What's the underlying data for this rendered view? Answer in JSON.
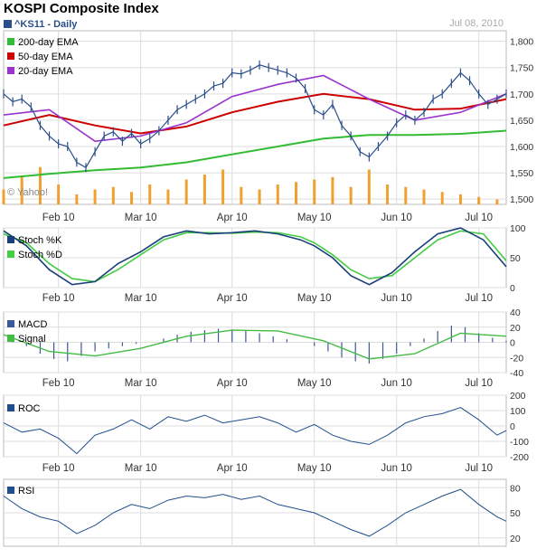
{
  "title": "KOSPI Composite Index",
  "ticker": "^KS11 - Daily",
  "date": "Jul 08, 2010",
  "watermark": "© Yahoo!",
  "colors": {
    "price": "#2b4f8a",
    "ema200": "#33bb33",
    "ema50": "#cc0000",
    "ema20": "#9933cc",
    "volume": "#f0a030",
    "stochK": "#1a3f7a",
    "stochD": "#44cc44",
    "macd": "#3b5998",
    "signal": "#44bb44",
    "line": "#1f4e8c",
    "grid": "#dddddd"
  },
  "month_labels": [
    "Feb 10",
    "Mar 10",
    "Apr 10",
    "May 10",
    "Jun 10",
    "Jul 10"
  ],
  "chart_data": [
    {
      "panel": "price",
      "type": "line",
      "title": "KOSPI Composite Index",
      "ylim": [
        1490,
        1820
      ],
      "yticks": [
        "1,800",
        "1,750",
        "1,700",
        "1,650",
        "1,600",
        "1,550",
        "1,500"
      ],
      "ytick_values": [
        1800,
        1750,
        1700,
        1650,
        1600,
        1550,
        1500
      ],
      "x_range": [
        0,
        110
      ],
      "month_positions": [
        12,
        30,
        50,
        68,
        86,
        104
      ],
      "series": [
        {
          "name": "200-day EMA",
          "x": [
            0,
            10,
            20,
            30,
            40,
            50,
            60,
            70,
            80,
            90,
            100,
            110
          ],
          "values": [
            1540,
            1548,
            1555,
            1560,
            1570,
            1585,
            1600,
            1615,
            1622,
            1622,
            1624,
            1630
          ]
        },
        {
          "name": "50-day EMA",
          "x": [
            0,
            10,
            20,
            30,
            40,
            50,
            60,
            70,
            80,
            90,
            100,
            110
          ],
          "values": [
            1640,
            1660,
            1640,
            1625,
            1638,
            1665,
            1685,
            1700,
            1690,
            1670,
            1672,
            1690
          ]
        },
        {
          "name": "20-day EMA",
          "x": [
            0,
            10,
            20,
            30,
            40,
            50,
            60,
            70,
            80,
            90,
            100,
            110
          ],
          "values": [
            1660,
            1670,
            1610,
            1620,
            1645,
            1695,
            1718,
            1735,
            1690,
            1650,
            1665,
            1700
          ]
        },
        {
          "name": "^KS11",
          "x": [
            0,
            2,
            4,
            6,
            8,
            10,
            12,
            14,
            16,
            18,
            20,
            22,
            24,
            26,
            28,
            30,
            32,
            34,
            36,
            38,
            40,
            42,
            44,
            46,
            48,
            50,
            52,
            54,
            56,
            58,
            60,
            62,
            64,
            66,
            68,
            70,
            72,
            74,
            76,
            78,
            80,
            82,
            84,
            86,
            88,
            90,
            92,
            94,
            96,
            98,
            100,
            102,
            104,
            106,
            108,
            110
          ],
          "values": [
            1700,
            1685,
            1690,
            1675,
            1640,
            1620,
            1605,
            1600,
            1570,
            1560,
            1590,
            1620,
            1628,
            1610,
            1625,
            1605,
            1615,
            1630,
            1650,
            1670,
            1680,
            1690,
            1700,
            1715,
            1720,
            1740,
            1738,
            1745,
            1755,
            1750,
            1745,
            1740,
            1730,
            1710,
            1670,
            1660,
            1680,
            1640,
            1620,
            1590,
            1580,
            1600,
            1620,
            1645,
            1660,
            1650,
            1665,
            1690,
            1700,
            1720,
            1740,
            1725,
            1700,
            1680,
            1690,
            1700
          ]
        }
      ],
      "volume": {
        "name": "Volume",
        "x": [
          0,
          4,
          8,
          12,
          16,
          20,
          24,
          28,
          32,
          36,
          40,
          44,
          48,
          52,
          56,
          60,
          64,
          68,
          72,
          76,
          80,
          84,
          88,
          92,
          96,
          100,
          104,
          108
        ],
        "values": [
          30,
          55,
          75,
          40,
          20,
          30,
          35,
          25,
          40,
          30,
          50,
          60,
          70,
          35,
          30,
          40,
          45,
          50,
          55,
          35,
          70,
          40,
          35,
          30,
          25,
          20,
          15,
          10
        ]
      }
    },
    {
      "panel": "stochastic",
      "type": "line",
      "ylim": [
        0,
        100
      ],
      "yticks": [
        "100",
        "50",
        "0"
      ],
      "ytick_values": [
        100,
        50,
        0
      ],
      "series": [
        {
          "name": "Stoch %K",
          "x": [
            0,
            5,
            10,
            15,
            20,
            25,
            30,
            35,
            40,
            45,
            50,
            55,
            60,
            65,
            68,
            72,
            76,
            80,
            85,
            90,
            95,
            100,
            105,
            110
          ],
          "values": [
            95,
            70,
            30,
            5,
            10,
            40,
            60,
            85,
            95,
            90,
            92,
            95,
            90,
            80,
            70,
            50,
            20,
            5,
            25,
            60,
            90,
            100,
            80,
            35
          ]
        },
        {
          "name": "Stoch %D",
          "x": [
            0,
            5,
            10,
            15,
            20,
            25,
            30,
            35,
            40,
            45,
            50,
            55,
            60,
            65,
            68,
            72,
            76,
            80,
            85,
            90,
            95,
            100,
            105,
            110
          ],
          "values": [
            90,
            75,
            40,
            15,
            10,
            30,
            55,
            80,
            92,
            92,
            91,
            93,
            92,
            85,
            75,
            55,
            30,
            15,
            20,
            50,
            80,
            95,
            90,
            45
          ]
        }
      ]
    },
    {
      "panel": "macd",
      "type": "bar",
      "ylim": [
        -40,
        40
      ],
      "yticks": [
        "40",
        "20",
        "0",
        "-20",
        "-40"
      ],
      "ytick_values": [
        40,
        20,
        0,
        -20,
        -40
      ],
      "series": [
        {
          "name": "MACD",
          "x": [
            2,
            5,
            8,
            11,
            14,
            17,
            20,
            23,
            26,
            29,
            32,
            35,
            38,
            41,
            44,
            47,
            50,
            53,
            56,
            59,
            62,
            65,
            68,
            71,
            74,
            77,
            80,
            83,
            86,
            89,
            92,
            95,
            98,
            101,
            104,
            107,
            110
          ],
          "values": [
            5,
            -5,
            -15,
            -22,
            -25,
            -18,
            -12,
            -8,
            -5,
            -2,
            0,
            5,
            10,
            14,
            16,
            18,
            17,
            15,
            12,
            8,
            4,
            0,
            -5,
            -12,
            -20,
            -25,
            -28,
            -22,
            -15,
            -5,
            5,
            15,
            22,
            20,
            12,
            6,
            2
          ]
        },
        {
          "name": "Signal",
          "x": [
            0,
            10,
            20,
            30,
            40,
            50,
            60,
            70,
            80,
            90,
            100,
            110
          ],
          "values": [
            10,
            -12,
            -18,
            -8,
            8,
            16,
            15,
            2,
            -22,
            -15,
            12,
            8
          ]
        }
      ]
    },
    {
      "panel": "roc",
      "type": "line",
      "ylim": [
        -200,
        200
      ],
      "yticks": [
        "200",
        "100",
        "0",
        "-100",
        "-200"
      ],
      "ytick_values": [
        200,
        100,
        0,
        -100,
        -200
      ],
      "series": [
        {
          "name": "ROC",
          "x": [
            0,
            4,
            8,
            12,
            16,
            20,
            24,
            28,
            32,
            36,
            40,
            44,
            48,
            52,
            56,
            60,
            64,
            68,
            72,
            76,
            80,
            84,
            88,
            92,
            96,
            100,
            104,
            108,
            110
          ],
          "values": [
            20,
            -40,
            -20,
            -80,
            -180,
            -60,
            -20,
            40,
            -20,
            60,
            30,
            70,
            20,
            40,
            60,
            20,
            -40,
            10,
            -60,
            -100,
            -120,
            -60,
            20,
            60,
            80,
            120,
            40,
            -60,
            -30
          ]
        }
      ]
    },
    {
      "panel": "rsi",
      "type": "line",
      "ylim": [
        10,
        90
      ],
      "yticks": [
        "80",
        "50",
        "20"
      ],
      "ytick_values": [
        80,
        50,
        20
      ],
      "series": [
        {
          "name": "RSI",
          "x": [
            0,
            4,
            8,
            12,
            16,
            20,
            24,
            28,
            32,
            36,
            40,
            44,
            48,
            52,
            56,
            60,
            64,
            68,
            72,
            76,
            80,
            84,
            88,
            92,
            96,
            100,
            104,
            108,
            110
          ],
          "values": [
            70,
            55,
            45,
            40,
            25,
            35,
            50,
            60,
            55,
            65,
            70,
            68,
            72,
            66,
            70,
            60,
            55,
            50,
            40,
            30,
            22,
            35,
            50,
            60,
            70,
            78,
            60,
            45,
            40
          ]
        }
      ]
    }
  ]
}
